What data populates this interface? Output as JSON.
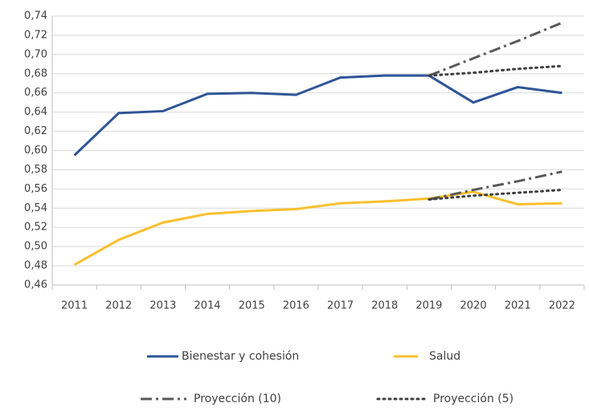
{
  "chart_data": {
    "type": "line",
    "categories": [
      "2011",
      "2012",
      "2013",
      "2014",
      "2015",
      "2016",
      "2017",
      "2018",
      "2019",
      "2020",
      "2021",
      "2022"
    ],
    "ylim": [
      0.46,
      0.74
    ],
    "yticks": [
      {
        "value": 0.46,
        "label": "0,46"
      },
      {
        "value": 0.48,
        "label": "0,48"
      },
      {
        "value": 0.5,
        "label": "0,50"
      },
      {
        "value": 0.52,
        "label": "0,52"
      },
      {
        "value": 0.54,
        "label": "0,54"
      },
      {
        "value": 0.56,
        "label": "0,56"
      },
      {
        "value": 0.58,
        "label": "0,58"
      },
      {
        "value": 0.6,
        "label": "0,60"
      },
      {
        "value": 0.62,
        "label": "0,62"
      },
      {
        "value": 0.64,
        "label": "0,64"
      },
      {
        "value": 0.66,
        "label": "0,66"
      },
      {
        "value": 0.68,
        "label": "0,68"
      },
      {
        "value": 0.7,
        "label": "0,70"
      },
      {
        "value": 0.72,
        "label": "0,72"
      },
      {
        "value": 0.74,
        "label": "0,74"
      }
    ],
    "grid": true,
    "series": [
      {
        "name": "Bienestar y cohesión",
        "color": "#2e5597",
        "dash": "solid",
        "values": [
          0.595,
          0.639,
          0.641,
          0.659,
          0.66,
          0.658,
          0.676,
          0.678,
          0.678,
          0.65,
          0.666,
          0.66
        ]
      },
      {
        "name": "Salud",
        "color": "#fbbf2e",
        "dash": "solid",
        "values": [
          0.481,
          0.507,
          0.525,
          0.534,
          0.537,
          0.539,
          0.545,
          0.547,
          0.55,
          0.557,
          0.544,
          0.545
        ]
      },
      {
        "name": "Proyección (10)",
        "color": "#595959",
        "dash": "dashdot",
        "parts": [
          [
            null,
            null,
            null,
            null,
            null,
            null,
            null,
            null,
            0.678,
            0.696,
            0.714,
            0.733
          ],
          [
            null,
            null,
            null,
            null,
            null,
            null,
            null,
            null,
            0.549,
            0.559,
            0.568,
            0.578
          ]
        ]
      },
      {
        "name": "Proyección (5)",
        "color": "#404040",
        "dash": "dot",
        "parts": [
          [
            null,
            null,
            null,
            null,
            null,
            null,
            null,
            null,
            0.678,
            0.681,
            0.685,
            0.688
          ],
          [
            null,
            null,
            null,
            null,
            null,
            null,
            null,
            null,
            0.549,
            0.553,
            0.556,
            0.559
          ]
        ]
      }
    ],
    "legend": "bottom"
  }
}
